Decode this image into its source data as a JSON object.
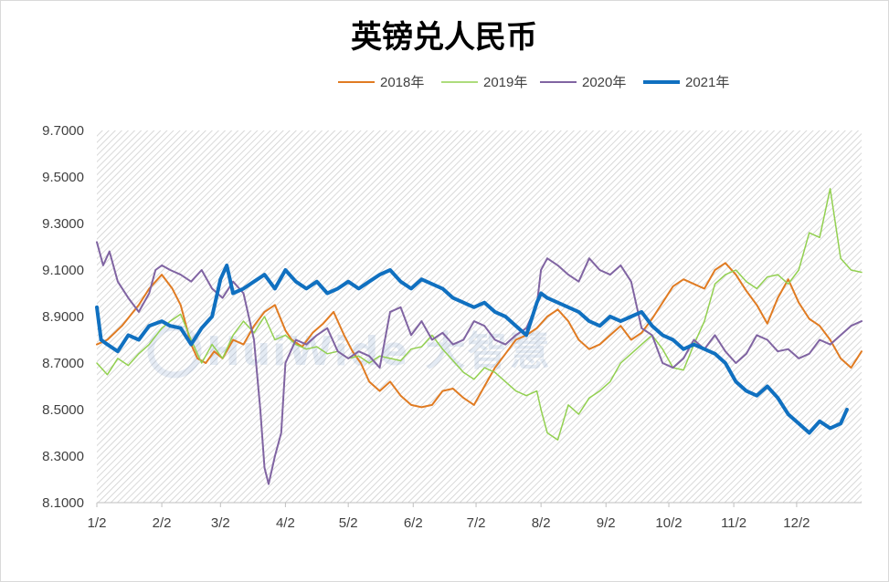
{
  "chart_data": {
    "type": "line",
    "title": "英镑兑人民币",
    "xlabel": "",
    "ylabel": "",
    "ylim": [
      8.1,
      9.7
    ],
    "yticks": [
      "9.7000",
      "9.5000",
      "9.3000",
      "9.1000",
      "8.9000",
      "8.7000",
      "8.5000",
      "8.3000",
      "8.1000"
    ],
    "ytick_values": [
      9.7,
      9.5,
      9.3,
      9.1,
      8.9,
      8.7,
      8.5,
      8.3,
      8.1
    ],
    "x_domain": [
      0,
      365
    ],
    "x_categories": [
      "1/2",
      "2/2",
      "3/2",
      "4/2",
      "5/2",
      "6/2",
      "7/2",
      "8/2",
      "9/2",
      "10/2",
      "11/2",
      "12/2"
    ],
    "x_positions": [
      0,
      31,
      59,
      90,
      120,
      151,
      181,
      212,
      243,
      273,
      304,
      334
    ],
    "legend_position": "top",
    "grid": "hatched background",
    "watermark": "HuiWide 大智慧",
    "series": [
      {
        "name": "2018年",
        "color": "#e07b22",
        "width": 2,
        "x": [
          0,
          5,
          12,
          20,
          25,
          31,
          36,
          40,
          45,
          48,
          52,
          56,
          60,
          65,
          70,
          75,
          80,
          85,
          90,
          93,
          98,
          103,
          108,
          113,
          118,
          122,
          126,
          130,
          135,
          140,
          145,
          150,
          155,
          160,
          165,
          170,
          175,
          180,
          185,
          190,
          195,
          200,
          205,
          210,
          215,
          220,
          225,
          230,
          235,
          240,
          245,
          250,
          255,
          260,
          265,
          270,
          275,
          280,
          285,
          290,
          295,
          300,
          305,
          310,
          315,
          320,
          325,
          330,
          335,
          340,
          345,
          350,
          355,
          360,
          365
        ],
        "y": [
          8.78,
          8.8,
          8.86,
          8.95,
          9.02,
          9.08,
          9.02,
          8.95,
          8.78,
          8.72,
          8.7,
          8.75,
          8.72,
          8.8,
          8.78,
          8.86,
          8.92,
          8.95,
          8.84,
          8.8,
          8.77,
          8.83,
          8.87,
          8.92,
          8.82,
          8.75,
          8.7,
          8.62,
          8.58,
          8.62,
          8.56,
          8.52,
          8.51,
          8.52,
          8.58,
          8.59,
          8.55,
          8.52,
          8.6,
          8.68,
          8.74,
          8.8,
          8.82,
          8.85,
          8.9,
          8.93,
          8.88,
          8.8,
          8.76,
          8.78,
          8.82,
          8.86,
          8.8,
          8.83,
          8.89,
          8.96,
          9.03,
          9.06,
          9.04,
          9.02,
          9.1,
          9.13,
          9.08,
          9.01,
          8.95,
          8.87,
          8.98,
          9.06,
          8.96,
          8.89,
          8.86,
          8.8,
          8.72,
          8.68,
          8.75
        ]
      },
      {
        "name": "2019年",
        "color": "#92d050",
        "width": 1.5,
        "x": [
          0,
          5,
          10,
          15,
          20,
          25,
          31,
          35,
          40,
          45,
          50,
          55,
          60,
          65,
          70,
          75,
          80,
          85,
          90,
          95,
          100,
          105,
          110,
          115,
          120,
          125,
          130,
          135,
          140,
          145,
          150,
          155,
          160,
          165,
          170,
          175,
          180,
          185,
          190,
          195,
          200,
          205,
          210,
          212,
          215,
          220,
          225,
          230,
          235,
          240,
          245,
          250,
          255,
          260,
          265,
          270,
          275,
          280,
          285,
          290,
          295,
          300,
          305,
          310,
          315,
          320,
          325,
          330,
          335,
          340,
          345,
          350,
          355,
          360,
          365
        ],
        "y": [
          8.7,
          8.65,
          8.72,
          8.69,
          8.74,
          8.78,
          8.85,
          8.88,
          8.91,
          8.8,
          8.7,
          8.78,
          8.72,
          8.82,
          8.88,
          8.83,
          8.9,
          8.8,
          8.82,
          8.78,
          8.76,
          8.77,
          8.74,
          8.75,
          8.72,
          8.73,
          8.7,
          8.73,
          8.72,
          8.71,
          8.76,
          8.77,
          8.82,
          8.76,
          8.71,
          8.66,
          8.63,
          8.68,
          8.66,
          8.62,
          8.58,
          8.56,
          8.58,
          8.5,
          8.4,
          8.37,
          8.52,
          8.48,
          8.55,
          8.58,
          8.62,
          8.7,
          8.74,
          8.78,
          8.82,
          8.76,
          8.68,
          8.67,
          8.78,
          8.88,
          9.04,
          9.08,
          9.1,
          9.05,
          9.02,
          9.07,
          9.08,
          9.04,
          9.1,
          9.26,
          9.24,
          9.45,
          9.15,
          9.1,
          9.09
        ]
      },
      {
        "name": "2020年",
        "color": "#8064a2",
        "width": 2,
        "x": [
          0,
          3,
          6,
          10,
          15,
          20,
          25,
          28,
          31,
          35,
          40,
          45,
          50,
          55,
          60,
          65,
          70,
          75,
          78,
          80,
          82,
          85,
          88,
          90,
          95,
          100,
          105,
          110,
          115,
          120,
          125,
          130,
          135,
          140,
          145,
          150,
          155,
          160,
          165,
          170,
          175,
          180,
          185,
          190,
          195,
          200,
          205,
          210,
          212,
          215,
          220,
          225,
          230,
          235,
          240,
          245,
          250,
          255,
          260,
          265,
          270,
          275,
          280,
          285,
          290,
          295,
          300,
          305,
          310,
          315,
          320,
          325,
          330,
          335,
          340,
          345,
          350,
          355,
          360,
          365
        ],
        "y": [
          9.22,
          9.12,
          9.18,
          9.05,
          8.98,
          8.92,
          9.0,
          9.1,
          9.12,
          9.1,
          9.08,
          9.05,
          9.1,
          9.02,
          8.98,
          9.05,
          9.0,
          8.8,
          8.5,
          8.25,
          8.18,
          8.3,
          8.4,
          8.7,
          8.8,
          8.78,
          8.82,
          8.85,
          8.75,
          8.72,
          8.75,
          8.73,
          8.68,
          8.92,
          8.94,
          8.82,
          8.88,
          8.8,
          8.83,
          8.78,
          8.8,
          8.88,
          8.86,
          8.8,
          8.78,
          8.82,
          8.85,
          8.95,
          9.1,
          9.15,
          9.12,
          9.08,
          9.05,
          9.15,
          9.1,
          9.08,
          9.12,
          9.05,
          8.85,
          8.82,
          8.7,
          8.68,
          8.72,
          8.8,
          8.76,
          8.82,
          8.75,
          8.7,
          8.74,
          8.82,
          8.8,
          8.75,
          8.76,
          8.72,
          8.74,
          8.8,
          8.78,
          8.82,
          8.86,
          8.88
        ]
      },
      {
        "name": "2021年",
        "color": "#1070c0",
        "width": 4,
        "x": [
          0,
          2,
          5,
          10,
          15,
          20,
          25,
          31,
          35,
          40,
          45,
          50,
          55,
          59,
          62,
          65,
          70,
          75,
          80,
          85,
          90,
          95,
          100,
          105,
          110,
          115,
          120,
          125,
          130,
          135,
          140,
          145,
          150,
          155,
          160,
          165,
          170,
          175,
          180,
          185,
          190,
          195,
          200,
          205,
          210,
          212,
          215,
          220,
          225,
          230,
          235,
          240,
          245,
          250,
          255,
          260,
          265,
          270,
          275,
          280,
          285,
          290,
          295,
          300,
          305,
          310,
          315,
          320,
          325,
          330,
          335,
          340,
          345,
          350,
          355,
          358
        ],
        "y": [
          8.94,
          8.8,
          8.78,
          8.75,
          8.82,
          8.8,
          8.86,
          8.88,
          8.86,
          8.85,
          8.78,
          8.85,
          8.9,
          9.06,
          9.12,
          9.0,
          9.02,
          9.05,
          9.08,
          9.02,
          9.1,
          9.05,
          9.02,
          9.05,
          9.0,
          9.02,
          9.05,
          9.02,
          9.05,
          9.08,
          9.1,
          9.05,
          9.02,
          9.06,
          9.04,
          9.02,
          8.98,
          8.96,
          8.94,
          8.96,
          8.92,
          8.9,
          8.86,
          8.82,
          8.96,
          9.0,
          8.98,
          8.96,
          8.94,
          8.92,
          8.88,
          8.86,
          8.9,
          8.88,
          8.9,
          8.92,
          8.86,
          8.82,
          8.8,
          8.76,
          8.78,
          8.76,
          8.74,
          8.7,
          8.62,
          8.58,
          8.56,
          8.6,
          8.55,
          8.48,
          8.44,
          8.4,
          8.45,
          8.42,
          8.44,
          8.5
        ]
      }
    ]
  }
}
